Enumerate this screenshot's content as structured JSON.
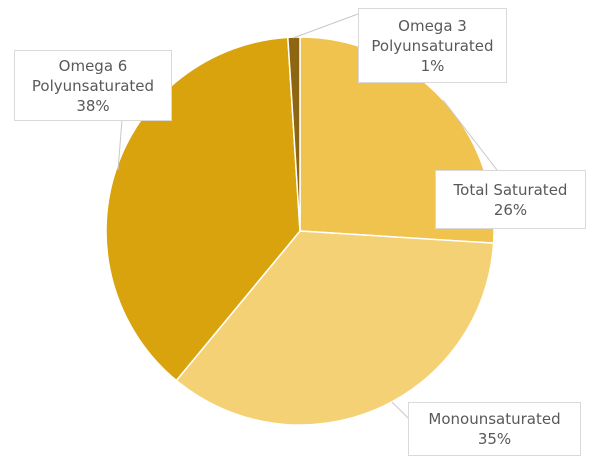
{
  "chart_data": {
    "type": "pie",
    "start_angle_deg": 0,
    "direction": "clockwise",
    "slices": [
      {
        "name": "Total Saturated",
        "value": 26,
        "label": "26%",
        "color": "#F0C24E"
      },
      {
        "name": "Monounsaturated",
        "value": 35,
        "label": "35%",
        "color": "#F5D176"
      },
      {
        "name": "Omega 6 Polyunsaturated",
        "name_lines": [
          "Omega 6",
          "Polyunsaturated"
        ],
        "value": 38,
        "label": "38%",
        "color": "#D9A30E"
      },
      {
        "name": "Omega 3 Polyunsaturated",
        "name_lines": [
          "Omega 3",
          "Polyunsaturated"
        ],
        "value": 1,
        "label": "1%",
        "color": "#8E6511"
      }
    ],
    "legend": "none",
    "data_labels": "callouts"
  }
}
